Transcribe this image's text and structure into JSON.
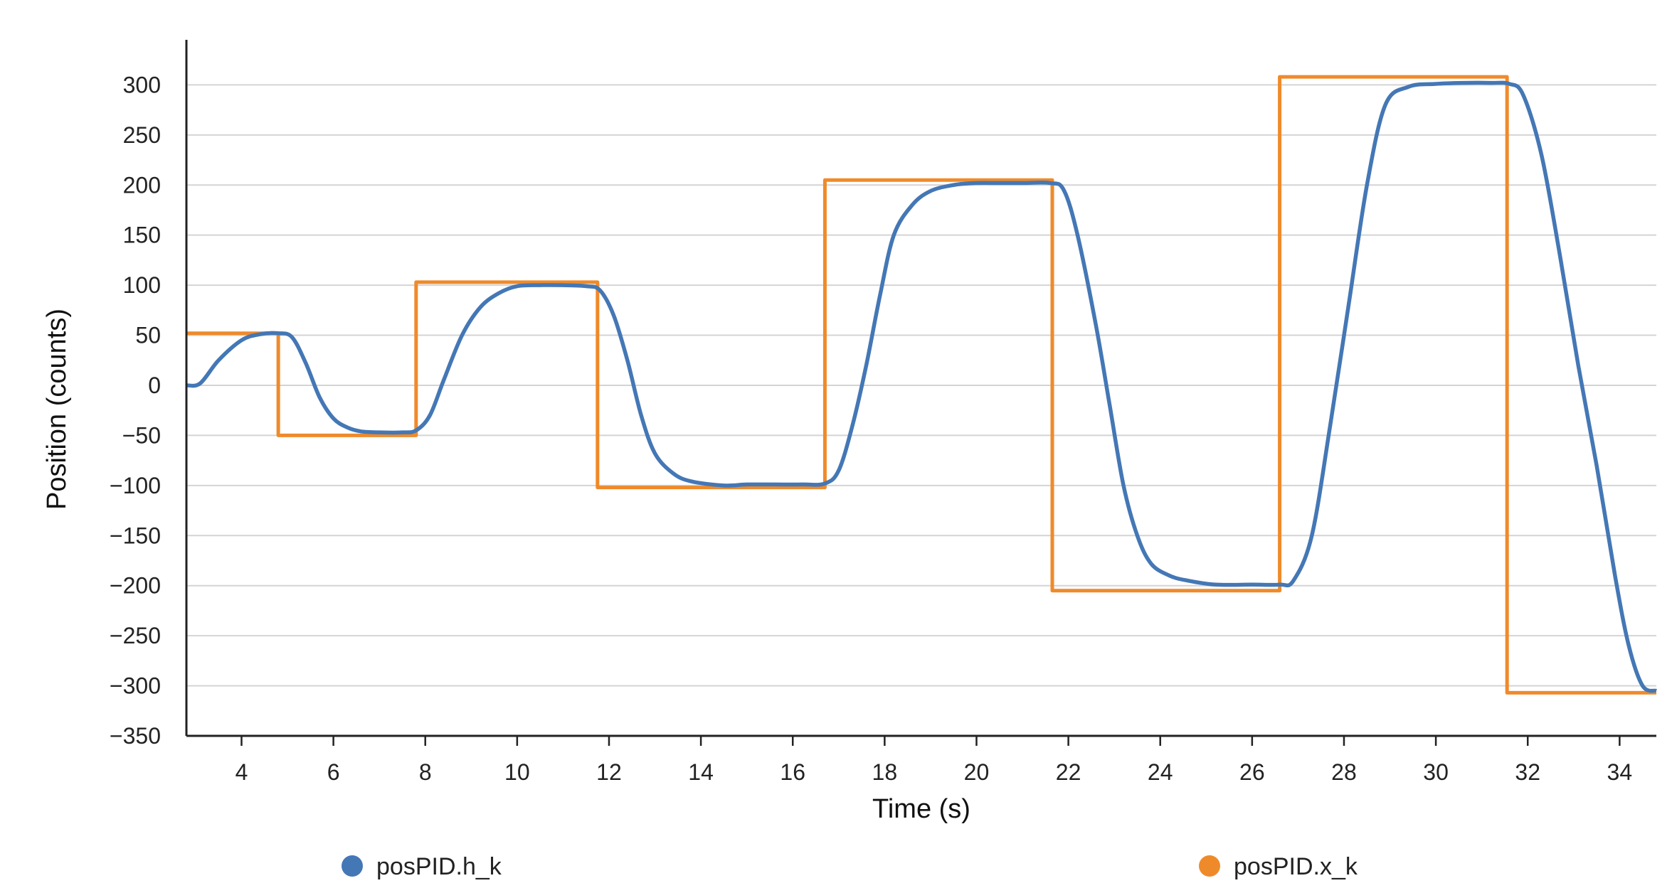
{
  "chart_data": {
    "type": "line",
    "xlabel": "Time (s)",
    "ylabel": "Position (counts)",
    "xlim": [
      2.8,
      34.8
    ],
    "ylim": [
      -350,
      345
    ],
    "x_ticks": [
      4,
      6,
      8,
      10,
      12,
      14,
      16,
      18,
      20,
      22,
      24,
      26,
      28,
      30,
      32,
      34
    ],
    "y_ticks": [
      300,
      250,
      200,
      150,
      100,
      50,
      0,
      -50,
      -100,
      -150,
      -200,
      -250,
      -300,
      -350
    ],
    "y_tick_labels": [
      "300",
      "250",
      "200",
      "150",
      "100",
      "50",
      "0",
      "−50",
      "−100",
      "−150",
      "−200",
      "−250",
      "−300",
      "−350"
    ],
    "grid": "horizontal",
    "legend_position": "bottom",
    "series": [
      {
        "name": "posPID.h_k",
        "color": "#4477b5",
        "style": "smooth",
        "x": [
          2.8,
          3.1,
          3.5,
          4.0,
          4.4,
          4.8,
          5.1,
          5.4,
          5.7,
          6.0,
          6.3,
          6.6,
          7.0,
          7.5,
          7.8,
          8.1,
          8.4,
          8.8,
          9.2,
          9.6,
          10.0,
          10.5,
          11.0,
          11.5,
          11.8,
          12.1,
          12.4,
          12.7,
          13.0,
          13.4,
          13.8,
          14.5,
          15.0,
          15.6,
          16.2,
          16.7,
          17.0,
          17.3,
          17.6,
          17.9,
          18.2,
          18.6,
          19.0,
          19.5,
          20.0,
          20.5,
          21.0,
          21.6,
          21.9,
          22.2,
          22.6,
          22.9,
          23.2,
          23.5,
          23.8,
          24.2,
          24.6,
          25.2,
          26.0,
          26.6,
          26.9,
          27.3,
          27.7,
          28.1,
          28.5,
          28.9,
          29.4,
          30.0,
          30.6,
          31.2,
          31.6,
          31.9,
          32.3,
          32.7,
          33.1,
          33.5,
          33.9,
          34.2,
          34.5,
          34.8
        ],
        "y": [
          0,
          2,
          25,
          45,
          51,
          52,
          48,
          22,
          -12,
          -33,
          -42,
          -46,
          -47,
          -47,
          -45,
          -30,
          5,
          50,
          78,
          92,
          99,
          100,
          100,
          99,
          95,
          70,
          25,
          -30,
          -68,
          -88,
          -96,
          -100,
          -99,
          -99,
          -99,
          -98,
          -85,
          -40,
          20,
          90,
          150,
          180,
          194,
          200,
          202,
          202,
          202,
          202,
          195,
          150,
          60,
          -20,
          -100,
          -150,
          -178,
          -190,
          -195,
          -199,
          -199,
          -199,
          -195,
          -150,
          -40,
          80,
          200,
          280,
          298,
          301,
          302,
          302,
          301,
          290,
          230,
          130,
          20,
          -80,
          -190,
          -260,
          -300,
          -305
        ]
      },
      {
        "name": "posPID.x_k",
        "color": "#ef8a2a",
        "style": "step",
        "x": [
          2.8,
          4.8,
          4.8,
          7.8,
          7.8,
          11.75,
          11.75,
          16.7,
          16.7,
          21.65,
          21.65,
          26.6,
          26.6,
          31.55,
          31.55,
          34.8
        ],
        "y": [
          52,
          52,
          -50,
          -50,
          103,
          103,
          -102,
          -102,
          205,
          205,
          -205,
          -205,
          308,
          308,
          -307,
          -307
        ]
      }
    ]
  }
}
